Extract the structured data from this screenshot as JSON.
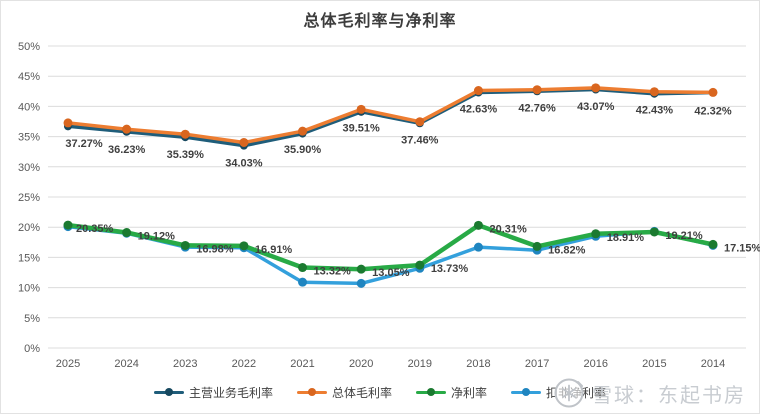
{
  "title": "总体毛利率与净利率",
  "watermark": {
    "text": "雪球：东起书房",
    "icon": "xueqiu-logo"
  },
  "chart_data": {
    "type": "line",
    "title": "总体毛利率与净利率",
    "x_categories": [
      "2025",
      "2024",
      "2023",
      "2022",
      "2021",
      "2020",
      "2019",
      "2018",
      "2017",
      "2016",
      "2015",
      "2014"
    ],
    "y_ticks": [
      "0%",
      "5%",
      "10%",
      "15%",
      "20%",
      "25%",
      "30%",
      "35%",
      "40%",
      "45%",
      "50%"
    ],
    "ylim": [
      0,
      50
    ],
    "ytick_step": 5,
    "grid": true,
    "legend_position": "bottom",
    "series": [
      {
        "name": "主营业务毛利率",
        "color": "#1F5D7A",
        "marker_color": "#16485F",
        "values": [
          36.7,
          35.8,
          34.9,
          33.5,
          35.5,
          39.1,
          37.2,
          42.3,
          42.5,
          42.8,
          42.1,
          42.3
        ]
      },
      {
        "name": "总体毛利率",
        "color": "#ED7D31",
        "marker_color": "#D9661F",
        "values": [
          37.27,
          36.23,
          35.39,
          34.03,
          35.9,
          39.51,
          37.46,
          42.63,
          42.76,
          43.07,
          42.43,
          42.32
        ],
        "labels": [
          "37.27%",
          "36.23%",
          "35.39%",
          "34.03%",
          "35.90%",
          "39.51%",
          "37.46%",
          "42.63%",
          "42.76%",
          "43.07%",
          "42.43%",
          "42.32%"
        ]
      },
      {
        "name": "净利率",
        "color": "#28AA46",
        "marker_color": "#1B7A30",
        "values": [
          20.35,
          19.12,
          16.98,
          16.91,
          13.32,
          13.05,
          13.73,
          20.31,
          16.82,
          18.91,
          19.21,
          17.15
        ],
        "labels": [
          "20.35%",
          "19.12%",
          "16.98%",
          "16.91%",
          "13.32%",
          "13.05%",
          "13.73%",
          "20.31%",
          "16.82%",
          "18.91%",
          "19.21%",
          "17.15%"
        ]
      },
      {
        "name": "扣非净利率",
        "color": "#33A0DC",
        "marker_color": "#1F85C0",
        "values": [
          20.1,
          19.0,
          16.7,
          16.6,
          10.9,
          10.7,
          13.2,
          16.7,
          16.2,
          18.5,
          19.3,
          17.0
        ]
      }
    ]
  }
}
